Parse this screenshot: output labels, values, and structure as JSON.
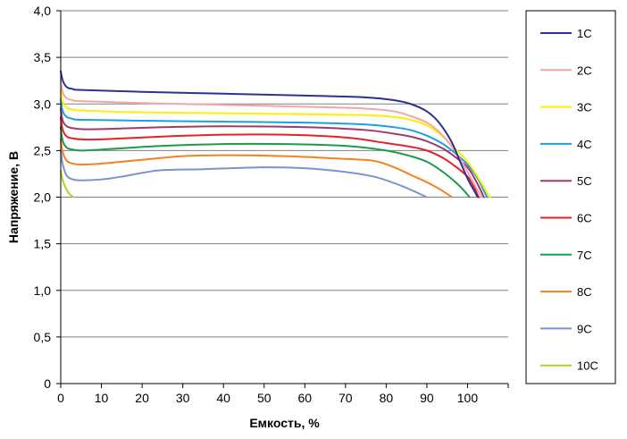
{
  "chart_data": {
    "type": "line",
    "xlabel": "Емкость, %",
    "ylabel": "Напряжение, В",
    "xlim": [
      0,
      110
    ],
    "ylim": [
      0,
      4.0
    ],
    "xticks": [
      0,
      10,
      20,
      30,
      40,
      50,
      60,
      70,
      80,
      90,
      100
    ],
    "xtick_labels": [
      "0",
      "10",
      "20",
      "30",
      "40",
      "50",
      "60",
      "70",
      "80",
      "90",
      "100"
    ],
    "yticks": [
      0,
      0.5,
      1.0,
      1.5,
      2.0,
      2.5,
      3.0,
      3.5,
      4.0
    ],
    "ytick_labels": [
      "0",
      "0,5",
      "1,0",
      "1,5",
      "2,0",
      "2,5",
      "3,0",
      "3,5",
      "4,0"
    ],
    "grid": "horizontal",
    "legend_position": "right",
    "series": [
      {
        "name": "1C",
        "color": "#2e3192",
        "points": [
          [
            0,
            3.35
          ],
          [
            0.5,
            3.25
          ],
          [
            1.5,
            3.18
          ],
          [
            3,
            3.16
          ],
          [
            5,
            3.15
          ],
          [
            20,
            3.13
          ],
          [
            40,
            3.11
          ],
          [
            60,
            3.09
          ],
          [
            75,
            3.07
          ],
          [
            82,
            3.04
          ],
          [
            86,
            3.0
          ],
          [
            90,
            2.92
          ],
          [
            93,
            2.8
          ],
          [
            96,
            2.6
          ],
          [
            98,
            2.4
          ],
          [
            100,
            2.2
          ],
          [
            101.5,
            2.08
          ],
          [
            102.5,
            2.0
          ]
        ]
      },
      {
        "name": "2C",
        "color": "#f4a6a6",
        "points": [
          [
            0,
            3.25
          ],
          [
            0.5,
            3.12
          ],
          [
            1.5,
            3.06
          ],
          [
            3,
            3.04
          ],
          [
            5,
            3.03
          ],
          [
            20,
            3.01
          ],
          [
            40,
            2.99
          ],
          [
            60,
            2.97
          ],
          [
            75,
            2.95
          ],
          [
            82,
            2.92
          ],
          [
            86,
            2.87
          ],
          [
            90,
            2.8
          ],
          [
            93,
            2.7
          ],
          [
            96,
            2.55
          ],
          [
            99,
            2.35
          ],
          [
            101.5,
            2.15
          ],
          [
            103.5,
            2.0
          ]
        ]
      },
      {
        "name": "3C",
        "color": "#ffee00",
        "points": [
          [
            0,
            3.15
          ],
          [
            0.5,
            3.02
          ],
          [
            1.5,
            2.96
          ],
          [
            3,
            2.94
          ],
          [
            5,
            2.93
          ],
          [
            20,
            2.91
          ],
          [
            40,
            2.9
          ],
          [
            60,
            2.89
          ],
          [
            75,
            2.88
          ],
          [
            82,
            2.86
          ],
          [
            86,
            2.83
          ],
          [
            90,
            2.77
          ],
          [
            94,
            2.65
          ],
          [
            97,
            2.52
          ],
          [
            100,
            2.38
          ],
          [
            102.5,
            2.22
          ],
          [
            104.5,
            2.07
          ],
          [
            105.5,
            2.0
          ]
        ]
      },
      {
        "name": "4C",
        "color": "#1e9fe0",
        "points": [
          [
            0,
            3.05
          ],
          [
            0.5,
            2.92
          ],
          [
            1.5,
            2.86
          ],
          [
            3,
            2.84
          ],
          [
            5,
            2.83
          ],
          [
            20,
            2.82
          ],
          [
            40,
            2.81
          ],
          [
            60,
            2.8
          ],
          [
            75,
            2.78
          ],
          [
            82,
            2.75
          ],
          [
            86,
            2.72
          ],
          [
            90,
            2.66
          ],
          [
            94,
            2.57
          ],
          [
            97,
            2.47
          ],
          [
            100,
            2.35
          ],
          [
            102.5,
            2.2
          ],
          [
            104,
            2.07
          ],
          [
            104.8,
            2.0
          ]
        ]
      },
      {
        "name": "5C",
        "color": "#9e3b6e",
        "points": [
          [
            0,
            2.95
          ],
          [
            0.5,
            2.82
          ],
          [
            1.5,
            2.76
          ],
          [
            3,
            2.74
          ],
          [
            5,
            2.73
          ],
          [
            10,
            2.73
          ],
          [
            25,
            2.75
          ],
          [
            40,
            2.76
          ],
          [
            60,
            2.75
          ],
          [
            75,
            2.72
          ],
          [
            82,
            2.68
          ],
          [
            86,
            2.65
          ],
          [
            90,
            2.6
          ],
          [
            94,
            2.52
          ],
          [
            97,
            2.43
          ],
          [
            100,
            2.32
          ],
          [
            102,
            2.18
          ],
          [
            103.5,
            2.05
          ],
          [
            104,
            2.0
          ]
        ]
      },
      {
        "name": "6C",
        "color": "#e3222a",
        "points": [
          [
            0,
            2.85
          ],
          [
            0.5,
            2.72
          ],
          [
            1.5,
            2.65
          ],
          [
            3,
            2.63
          ],
          [
            5,
            2.62
          ],
          [
            10,
            2.62
          ],
          [
            25,
            2.65
          ],
          [
            40,
            2.67
          ],
          [
            55,
            2.67
          ],
          [
            70,
            2.64
          ],
          [
            80,
            2.58
          ],
          [
            86,
            2.54
          ],
          [
            90,
            2.5
          ],
          [
            94,
            2.42
          ],
          [
            97,
            2.33
          ],
          [
            100,
            2.22
          ],
          [
            101.5,
            2.12
          ],
          [
            102.5,
            2.02
          ],
          [
            102.8,
            2.0
          ]
        ]
      },
      {
        "name": "7C",
        "color": "#1b9c47",
        "points": [
          [
            0,
            2.75
          ],
          [
            0.5,
            2.6
          ],
          [
            1.5,
            2.53
          ],
          [
            3,
            2.51
          ],
          [
            5,
            2.5
          ],
          [
            10,
            2.51
          ],
          [
            25,
            2.55
          ],
          [
            40,
            2.57
          ],
          [
            55,
            2.57
          ],
          [
            70,
            2.55
          ],
          [
            80,
            2.5
          ],
          [
            86,
            2.44
          ],
          [
            90,
            2.38
          ],
          [
            93,
            2.3
          ],
          [
            96,
            2.2
          ],
          [
            98.5,
            2.1
          ],
          [
            100.5,
            2.0
          ]
        ]
      },
      {
        "name": "8C",
        "color": "#f58220",
        "points": [
          [
            0,
            2.62
          ],
          [
            0.5,
            2.48
          ],
          [
            1.5,
            2.39
          ],
          [
            3,
            2.36
          ],
          [
            5,
            2.35
          ],
          [
            10,
            2.36
          ],
          [
            20,
            2.4
          ],
          [
            30,
            2.44
          ],
          [
            40,
            2.45
          ],
          [
            55,
            2.44
          ],
          [
            70,
            2.41
          ],
          [
            77,
            2.39
          ],
          [
            82,
            2.32
          ],
          [
            86,
            2.24
          ],
          [
            90,
            2.16
          ],
          [
            93,
            2.09
          ],
          [
            95.5,
            2.02
          ],
          [
            96.2,
            2.0
          ]
        ]
      },
      {
        "name": "9C",
        "color": "#7b93cf",
        "points": [
          [
            0,
            2.5
          ],
          [
            0.5,
            2.35
          ],
          [
            1.5,
            2.23
          ],
          [
            3,
            2.19
          ],
          [
            5,
            2.18
          ],
          [
            10,
            2.19
          ],
          [
            15,
            2.22
          ],
          [
            20,
            2.26
          ],
          [
            25,
            2.29
          ],
          [
            35,
            2.3
          ],
          [
            50,
            2.32
          ],
          [
            60,
            2.31
          ],
          [
            70,
            2.27
          ],
          [
            77,
            2.22
          ],
          [
            82,
            2.15
          ],
          [
            86,
            2.08
          ],
          [
            89,
            2.02
          ],
          [
            90,
            2.0
          ]
        ]
      },
      {
        "name": "10C",
        "color": "#b5cf2b",
        "points": [
          [
            0,
            2.28
          ],
          [
            0.5,
            2.18
          ],
          [
            1.2,
            2.1
          ],
          [
            2,
            2.04
          ],
          [
            2.8,
            2.01
          ],
          [
            3.2,
            2.0
          ]
        ]
      }
    ]
  }
}
